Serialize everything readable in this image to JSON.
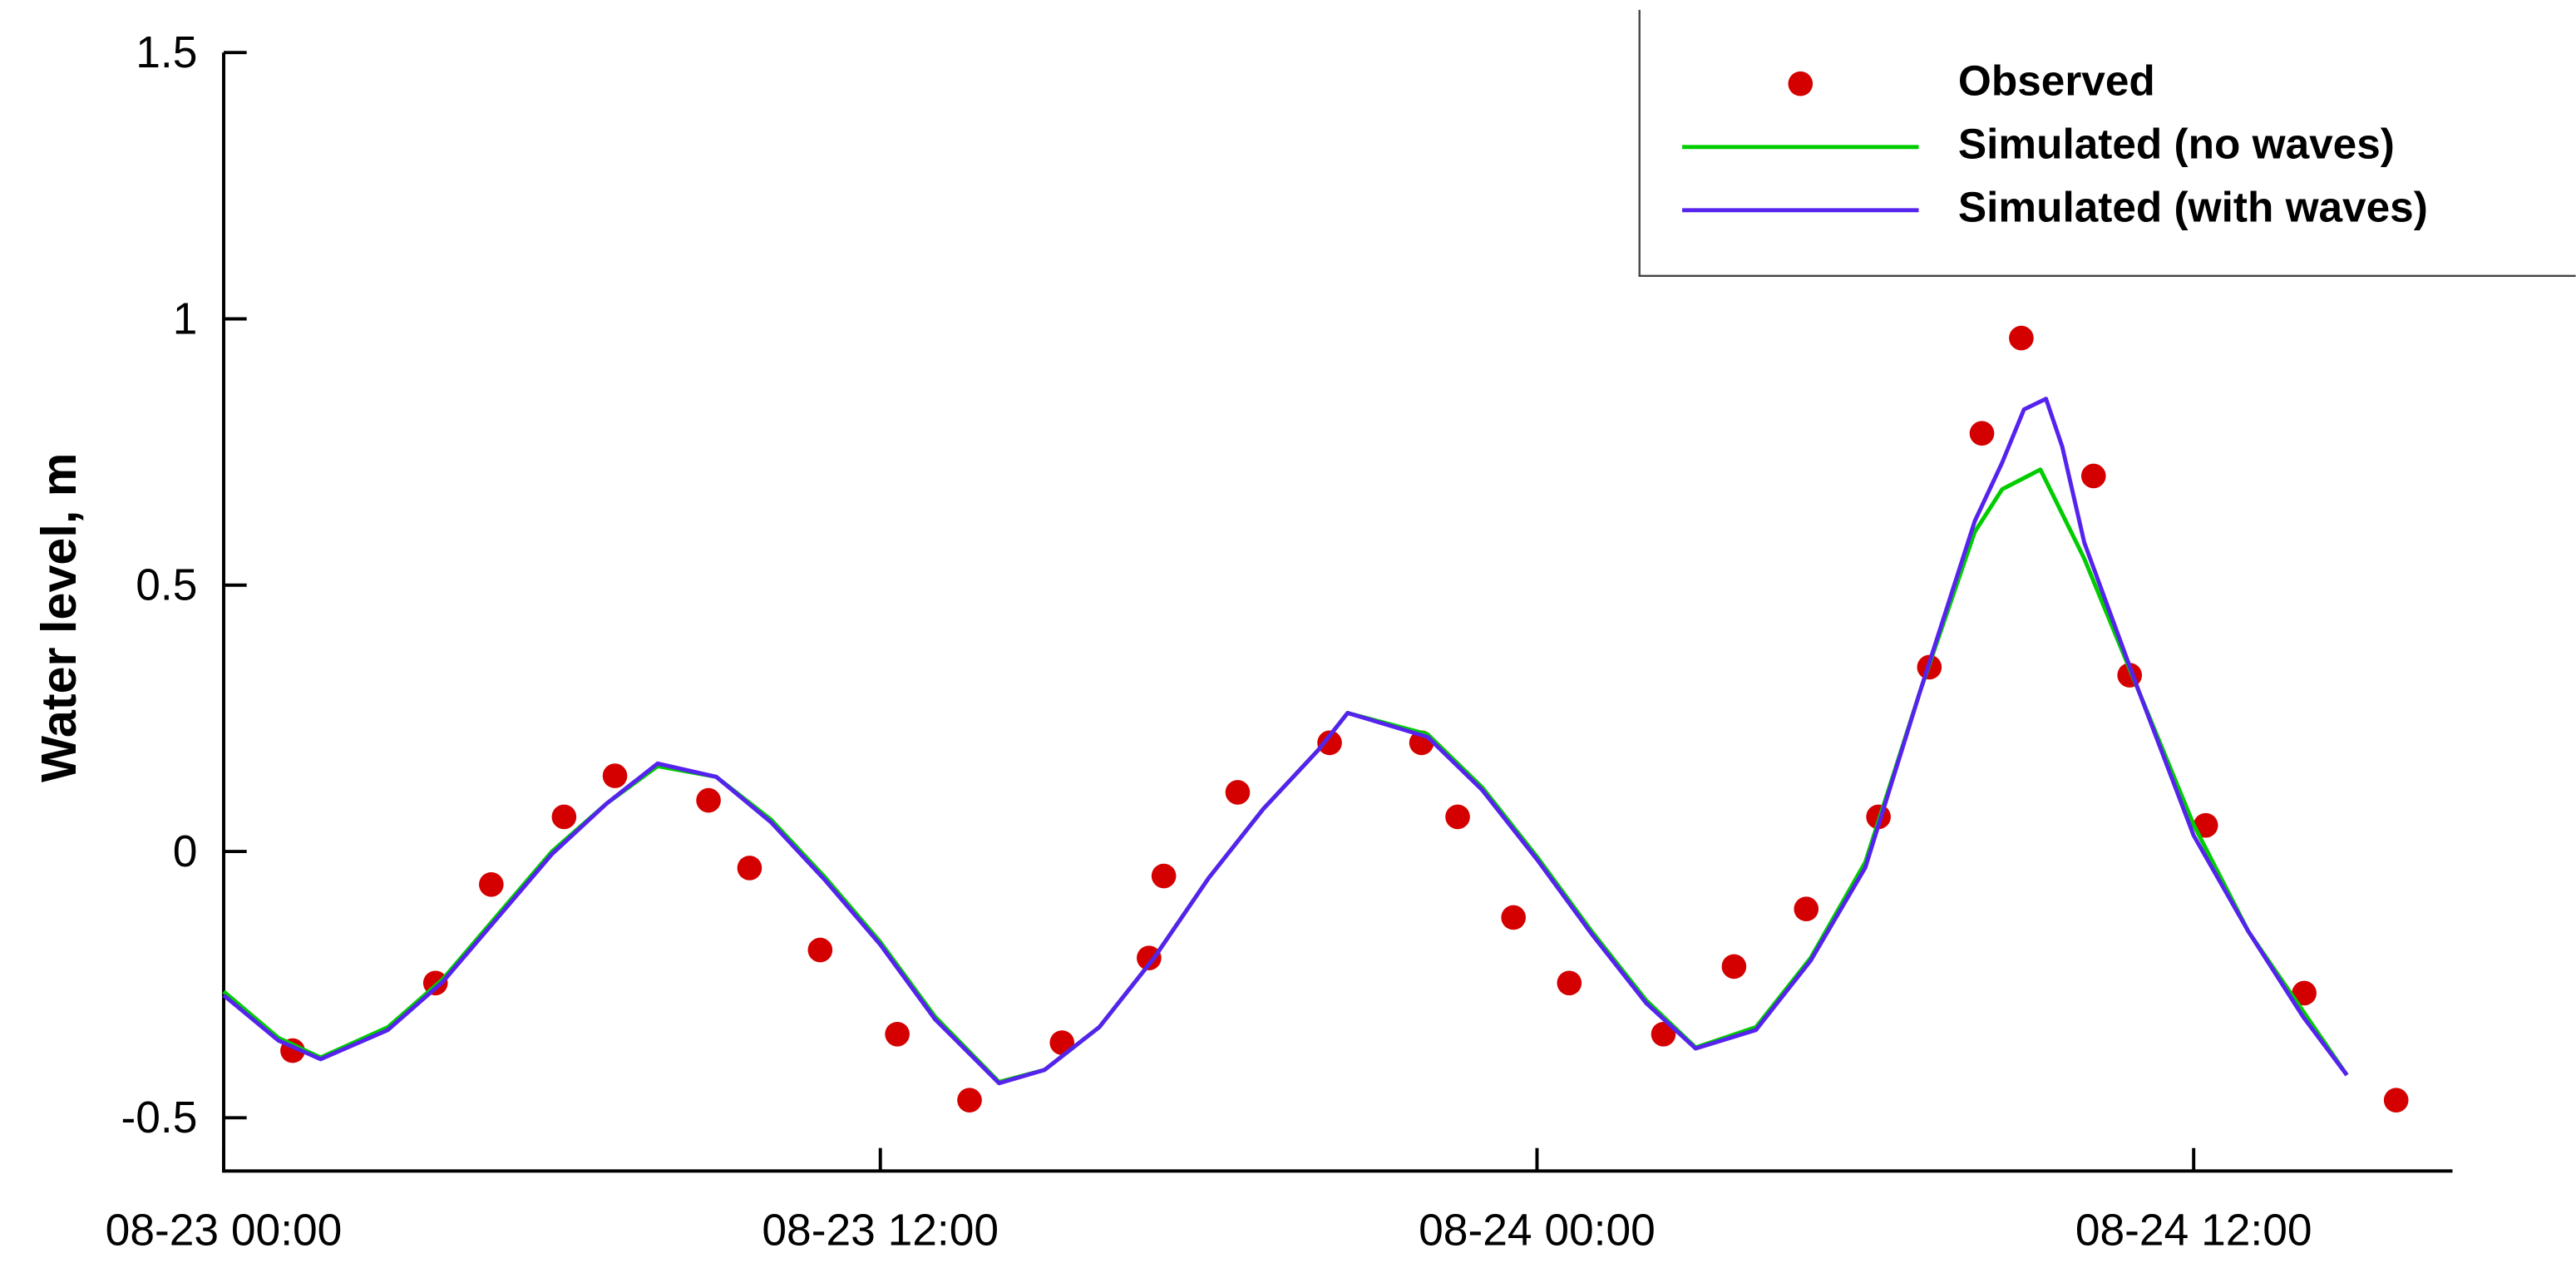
{
  "chart_data": {
    "type": "line",
    "y_label": "Water level, m",
    "xlim": [
      0,
      40.7
    ],
    "ylim": [
      -0.6,
      1.5
    ],
    "xticks": [
      {
        "value": 0,
        "label": "08-23 00:00"
      },
      {
        "value": 12,
        "label": "08-23 12:00"
      },
      {
        "value": 24,
        "label": "08-24 00:00"
      },
      {
        "value": 36,
        "label": "08-24 12:00"
      }
    ],
    "yticks": [
      -0.5,
      0,
      0.5,
      1,
      1.5
    ],
    "legend": "upper right",
    "series": [
      {
        "name": "Observed",
        "type": "scatter",
        "color": "#d40000",
        "x": [
          1.26,
          3.87,
          4.89,
          6.22,
          7.15,
          8.86,
          9.61,
          10.9,
          12.31,
          13.63,
          15.32,
          16.91,
          17.18,
          18.53,
          20.21,
          21.89,
          22.55,
          23.57,
          24.59,
          26.31,
          27.6,
          28.92,
          30.24,
          31.17,
          32.13,
          32.85,
          34.17,
          34.83,
          36.22,
          38.02,
          39.7
        ],
        "values": [
          -0.374,
          -0.247,
          -0.062,
          0.065,
          0.142,
          0.096,
          -0.031,
          -0.185,
          -0.343,
          -0.467,
          -0.359,
          -0.2,
          -0.046,
          0.111,
          0.204,
          0.204,
          0.065,
          -0.124,
          -0.247,
          -0.343,
          -0.216,
          -0.108,
          0.065,
          0.346,
          0.785,
          0.964,
          0.705,
          0.331,
          0.049,
          -0.266,
          -0.467
        ]
      },
      {
        "name": "Simulated (no waves)",
        "type": "line",
        "color": "#00cc00",
        "x": [
          0,
          1,
          1.77,
          3,
          4,
          5,
          6,
          7,
          7.93,
          9,
          10,
          11,
          12,
          13,
          14.17,
          15,
          16,
          17,
          18,
          19,
          20,
          20.54,
          22,
          23,
          24,
          25,
          26,
          26.9,
          28,
          29,
          30,
          31,
          32,
          32.5,
          33.2,
          34,
          35,
          36,
          37,
          38,
          38.8
        ],
        "values": [
          -0.263,
          -0.35,
          -0.387,
          -0.33,
          -0.24,
          -0.12,
          0.0,
          0.09,
          0.16,
          0.14,
          0.06,
          -0.05,
          -0.17,
          -0.31,
          -0.433,
          -0.41,
          -0.33,
          -0.2,
          -0.05,
          0.08,
          0.19,
          0.26,
          0.22,
          0.12,
          -0.01,
          -0.15,
          -0.28,
          -0.368,
          -0.33,
          -0.2,
          -0.02,
          0.3,
          0.6,
          0.68,
          0.717,
          0.55,
          0.3,
          0.05,
          -0.15,
          -0.3,
          -0.42
        ]
      },
      {
        "name": "Simulated (with waves)",
        "type": "line",
        "color": "#5522ee",
        "x": [
          0,
          1,
          1.77,
          3,
          4,
          5,
          6,
          7,
          7.93,
          9,
          10,
          11,
          12,
          13,
          14.17,
          15,
          16,
          17,
          18,
          19,
          20,
          20.54,
          22,
          23,
          24,
          25,
          26,
          26.9,
          28,
          29,
          30,
          31,
          32,
          32.5,
          32.9,
          33.3,
          33.6,
          34,
          35,
          36,
          37,
          38,
          38.8
        ],
        "values": [
          -0.27,
          -0.355,
          -0.39,
          -0.335,
          -0.245,
          -0.125,
          -0.005,
          0.09,
          0.165,
          0.14,
          0.055,
          -0.055,
          -0.175,
          -0.315,
          -0.435,
          -0.41,
          -0.33,
          -0.2,
          -0.05,
          0.08,
          0.19,
          0.26,
          0.215,
          0.115,
          -0.015,
          -0.155,
          -0.285,
          -0.37,
          -0.335,
          -0.205,
          -0.03,
          0.3,
          0.62,
          0.73,
          0.83,
          0.85,
          0.76,
          0.58,
          0.3,
          0.03,
          -0.15,
          -0.31,
          -0.42
        ]
      }
    ]
  }
}
